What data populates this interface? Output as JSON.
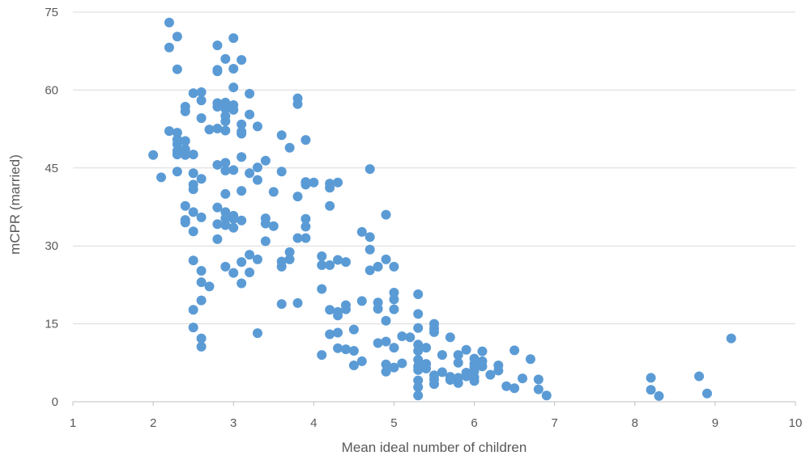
{
  "chart_data": {
    "type": "scatter",
    "xlabel": "Mean ideal number of children",
    "ylabel": "mCPR (married)",
    "xlim": [
      1,
      10
    ],
    "ylim": [
      0,
      75
    ],
    "x_ticks": [
      "1",
      "2",
      "3",
      "4",
      "5",
      "6",
      "7",
      "8",
      "9",
      "10"
    ],
    "y_ticks": [
      "0",
      "15",
      "30",
      "45",
      "60",
      "75"
    ],
    "grid": "horizontal",
    "point_color": "#5b9bd5",
    "points": [
      [
        2.0,
        47.5
      ],
      [
        2.1,
        43.2
      ],
      [
        2.2,
        73.0
      ],
      [
        2.2,
        68.2
      ],
      [
        2.2,
        52.1
      ],
      [
        2.3,
        70.3
      ],
      [
        2.3,
        64.0
      ],
      [
        2.3,
        51.8
      ],
      [
        2.3,
        50.5
      ],
      [
        2.3,
        49.6
      ],
      [
        2.3,
        48.3
      ],
      [
        2.3,
        47.6
      ],
      [
        2.3,
        44.3
      ],
      [
        2.4,
        56.8
      ],
      [
        2.4,
        55.9
      ],
      [
        2.4,
        50.2
      ],
      [
        2.4,
        48.6
      ],
      [
        2.4,
        47.5
      ],
      [
        2.4,
        37.7
      ],
      [
        2.4,
        35.0
      ],
      [
        2.4,
        34.5
      ],
      [
        2.5,
        59.4
      ],
      [
        2.5,
        47.6
      ],
      [
        2.5,
        44.0
      ],
      [
        2.5,
        41.8
      ],
      [
        2.5,
        40.9
      ],
      [
        2.5,
        36.5
      ],
      [
        2.5,
        32.8
      ],
      [
        2.5,
        27.2
      ],
      [
        2.5,
        17.7
      ],
      [
        2.5,
        14.3
      ],
      [
        2.6,
        59.6
      ],
      [
        2.6,
        58.0
      ],
      [
        2.6,
        54.6
      ],
      [
        2.6,
        42.9
      ],
      [
        2.6,
        35.5
      ],
      [
        2.6,
        25.2
      ],
      [
        2.6,
        23.0
      ],
      [
        2.6,
        19.5
      ],
      [
        2.6,
        12.2
      ],
      [
        2.6,
        10.6
      ],
      [
        2.7,
        52.4
      ],
      [
        2.7,
        22.2
      ],
      [
        2.8,
        68.6
      ],
      [
        2.8,
        63.9
      ],
      [
        2.8,
        63.6
      ],
      [
        2.8,
        57.5
      ],
      [
        2.8,
        56.8
      ],
      [
        2.8,
        52.6
      ],
      [
        2.8,
        45.6
      ],
      [
        2.8,
        37.4
      ],
      [
        2.8,
        34.2
      ],
      [
        2.8,
        31.3
      ],
      [
        2.9,
        66.0
      ],
      [
        2.9,
        57.6
      ],
      [
        2.9,
        56.4
      ],
      [
        2.9,
        55.0
      ],
      [
        2.9,
        54.0
      ],
      [
        2.9,
        52.2
      ],
      [
        2.9,
        46.0
      ],
      [
        2.9,
        44.5
      ],
      [
        2.9,
        40.0
      ],
      [
        2.9,
        36.5
      ],
      [
        2.9,
        35.3
      ],
      [
        2.9,
        34.0
      ],
      [
        2.9,
        26.0
      ],
      [
        3.0,
        70.0
      ],
      [
        3.0,
        64.1
      ],
      [
        3.0,
        60.5
      ],
      [
        3.0,
        57.1
      ],
      [
        3.0,
        56.2
      ],
      [
        3.0,
        44.6
      ],
      [
        3.0,
        35.8
      ],
      [
        3.0,
        35.2
      ],
      [
        3.0,
        33.5
      ],
      [
        3.0,
        24.8
      ],
      [
        3.1,
        65.8
      ],
      [
        3.1,
        53.4
      ],
      [
        3.1,
        52.0
      ],
      [
        3.1,
        51.6
      ],
      [
        3.1,
        47.1
      ],
      [
        3.1,
        40.6
      ],
      [
        3.1,
        34.9
      ],
      [
        3.1,
        26.9
      ],
      [
        3.1,
        22.8
      ],
      [
        3.2,
        59.3
      ],
      [
        3.2,
        55.3
      ],
      [
        3.2,
        44.0
      ],
      [
        3.2,
        28.3
      ],
      [
        3.2,
        24.9
      ],
      [
        3.3,
        53.0
      ],
      [
        3.3,
        45.1
      ],
      [
        3.3,
        42.7
      ],
      [
        3.3,
        27.4
      ],
      [
        3.3,
        13.2
      ],
      [
        3.4,
        46.4
      ],
      [
        3.4,
        35.3
      ],
      [
        3.4,
        34.3
      ],
      [
        3.4,
        30.9
      ],
      [
        3.5,
        40.4
      ],
      [
        3.5,
        33.8
      ],
      [
        3.6,
        51.3
      ],
      [
        3.6,
        44.3
      ],
      [
        3.6,
        27.0
      ],
      [
        3.6,
        26.0
      ],
      [
        3.6,
        18.8
      ],
      [
        3.7,
        48.9
      ],
      [
        3.7,
        28.8
      ],
      [
        3.7,
        27.4
      ],
      [
        3.8,
        58.4
      ],
      [
        3.8,
        57.3
      ],
      [
        3.8,
        39.5
      ],
      [
        3.8,
        31.5
      ],
      [
        3.8,
        19.0
      ],
      [
        3.9,
        50.4
      ],
      [
        3.9,
        42.3
      ],
      [
        3.9,
        41.8
      ],
      [
        3.9,
        35.2
      ],
      [
        3.9,
        33.7
      ],
      [
        3.9,
        31.5
      ],
      [
        4.0,
        42.2
      ],
      [
        4.1,
        28.0
      ],
      [
        4.1,
        26.3
      ],
      [
        4.1,
        21.7
      ],
      [
        4.1,
        9.0
      ],
      [
        4.2,
        42.0
      ],
      [
        4.2,
        41.2
      ],
      [
        4.2,
        37.7
      ],
      [
        4.2,
        26.3
      ],
      [
        4.2,
        17.7
      ],
      [
        4.2,
        13.0
      ],
      [
        4.3,
        42.2
      ],
      [
        4.3,
        27.3
      ],
      [
        4.3,
        17.3
      ],
      [
        4.3,
        16.6
      ],
      [
        4.3,
        13.3
      ],
      [
        4.3,
        10.3
      ],
      [
        4.4,
        26.9
      ],
      [
        4.4,
        18.6
      ],
      [
        4.4,
        17.8
      ],
      [
        4.4,
        10.1
      ],
      [
        4.5,
        13.9
      ],
      [
        4.5,
        9.8
      ],
      [
        4.5,
        7.0
      ],
      [
        4.6,
        32.7
      ],
      [
        4.6,
        19.4
      ],
      [
        4.6,
        7.8
      ],
      [
        4.7,
        44.8
      ],
      [
        4.7,
        31.7
      ],
      [
        4.7,
        29.3
      ],
      [
        4.7,
        25.3
      ],
      [
        4.8,
        26.0
      ],
      [
        4.8,
        19.1
      ],
      [
        4.8,
        17.9
      ],
      [
        4.8,
        11.3
      ],
      [
        4.9,
        36.0
      ],
      [
        4.9,
        27.4
      ],
      [
        4.9,
        15.6
      ],
      [
        4.9,
        11.6
      ],
      [
        4.9,
        7.2
      ],
      [
        4.9,
        5.8
      ],
      [
        5.0,
        26.0
      ],
      [
        5.0,
        21.0
      ],
      [
        5.0,
        19.7
      ],
      [
        5.0,
        17.8
      ],
      [
        5.0,
        10.4
      ],
      [
        5.0,
        6.6
      ],
      [
        5.1,
        12.6
      ],
      [
        5.1,
        7.4
      ],
      [
        5.2,
        12.4
      ],
      [
        5.3,
        20.7
      ],
      [
        5.3,
        16.9
      ],
      [
        5.3,
        14.2
      ],
      [
        5.3,
        11.0
      ],
      [
        5.3,
        9.8
      ],
      [
        5.3,
        8.1
      ],
      [
        5.3,
        6.8
      ],
      [
        5.3,
        6.1
      ],
      [
        5.3,
        4.1
      ],
      [
        5.3,
        2.8
      ],
      [
        5.3,
        1.2
      ],
      [
        5.4,
        10.4
      ],
      [
        5.4,
        7.3
      ],
      [
        5.4,
        6.4
      ],
      [
        5.5,
        15.0
      ],
      [
        5.5,
        14.1
      ],
      [
        5.5,
        13.4
      ],
      [
        5.5,
        5.1
      ],
      [
        5.5,
        4.3
      ],
      [
        5.5,
        3.4
      ],
      [
        5.6,
        9.0
      ],
      [
        5.6,
        5.7
      ],
      [
        5.7,
        12.4
      ],
      [
        5.7,
        4.8
      ],
      [
        5.7,
        4.2
      ],
      [
        5.8,
        9.0
      ],
      [
        5.8,
        7.5
      ],
      [
        5.8,
        4.6
      ],
      [
        5.8,
        3.6
      ],
      [
        5.9,
        10.0
      ],
      [
        5.9,
        5.6
      ],
      [
        5.9,
        4.9
      ],
      [
        6.0,
        8.3
      ],
      [
        6.0,
        7.3
      ],
      [
        6.0,
        6.6
      ],
      [
        6.0,
        5.9
      ],
      [
        6.0,
        4.7
      ],
      [
        6.0,
        4.0
      ],
      [
        6.1,
        9.7
      ],
      [
        6.1,
        7.8
      ],
      [
        6.1,
        6.8
      ],
      [
        6.2,
        5.2
      ],
      [
        6.3,
        7.0
      ],
      [
        6.3,
        6.0
      ],
      [
        6.4,
        3.0
      ],
      [
        6.5,
        9.9
      ],
      [
        6.5,
        2.6
      ],
      [
        6.6,
        4.5
      ],
      [
        6.7,
        8.2
      ],
      [
        6.8,
        4.3
      ],
      [
        6.8,
        2.4
      ],
      [
        6.9,
        1.2
      ],
      [
        8.2,
        4.6
      ],
      [
        8.2,
        2.3
      ],
      [
        8.3,
        1.1
      ],
      [
        8.8,
        4.9
      ],
      [
        8.9,
        1.6
      ],
      [
        9.2,
        12.2
      ]
    ]
  }
}
